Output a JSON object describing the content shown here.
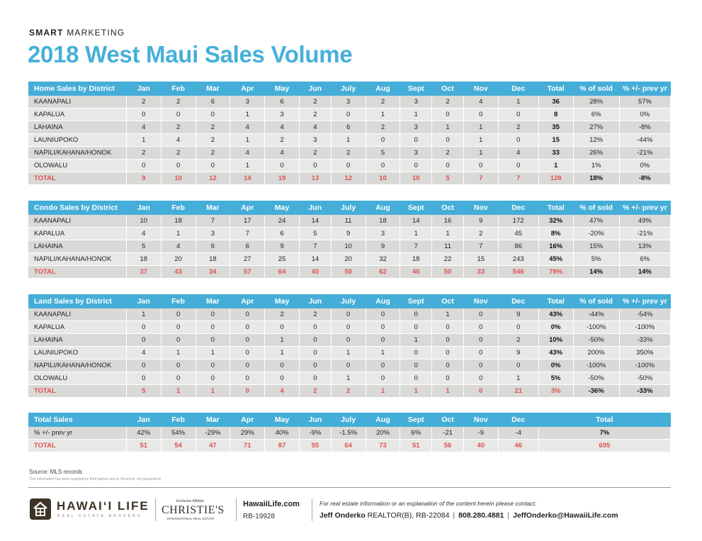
{
  "header": {
    "eyebrow_bold": "SMART",
    "eyebrow_rest": " MARKETING",
    "title": "2018 West Maui Sales Volume"
  },
  "colors": {
    "accent": "#45aed8",
    "total_red": "#e0524f",
    "row_dark": "#d9d9d7",
    "row_light": "#e8e8e6",
    "brand_brown": "#3d3326"
  },
  "home": {
    "columns": [
      "Home Sales by District",
      "Jan",
      "Feb",
      "Mar",
      "Apr",
      "May",
      "Jun",
      "July",
      "Aug",
      "Sept",
      "Oct",
      "Nov",
      "Dec",
      "Total",
      "% of sold",
      "% +/- prev yr"
    ],
    "rows": [
      [
        "KAANAPALI",
        "2",
        "2",
        "6",
        "3",
        "6",
        "2",
        "3",
        "2",
        "3",
        "2",
        "4",
        "1",
        "36",
        "28%",
        "57%"
      ],
      [
        "KAPALUA",
        "0",
        "0",
        "0",
        "1",
        "3",
        "2",
        "0",
        "1",
        "1",
        "0",
        "0",
        "0",
        "8",
        "6%",
        "0%"
      ],
      [
        "LAHAINA",
        "4",
        "2",
        "2",
        "4",
        "4",
        "4",
        "6",
        "2",
        "3",
        "1",
        "1",
        "2",
        "35",
        "27%",
        "-8%"
      ],
      [
        "LAUNIUPOKO",
        "1",
        "4",
        "2",
        "1",
        "2",
        "3",
        "1",
        "0",
        "0",
        "0",
        "1",
        "0",
        "15",
        "12%",
        "-44%"
      ],
      [
        "NAPILI/KAHANA/HONOK",
        "2",
        "2",
        "2",
        "4",
        "4",
        "2",
        "2",
        "5",
        "3",
        "2",
        "1",
        "4",
        "33",
        "26%",
        "-21%"
      ],
      [
        "OLOWALU",
        "0",
        "0",
        "0",
        "1",
        "0",
        "0",
        "0",
        "0",
        "0",
        "0",
        "0",
        "0",
        "1",
        "1%",
        "0%"
      ]
    ],
    "total": [
      "TOTAL",
      "9",
      "10",
      "12",
      "14",
      "19",
      "13",
      "12",
      "10",
      "10",
      "5",
      "7",
      "7",
      "128",
      "18%",
      "-8%"
    ]
  },
  "condo": {
    "columns": [
      "Condo Sales by District",
      "Jan",
      "Feb",
      "Mar",
      "Apr",
      "May",
      "Jun",
      "July",
      "Aug",
      "Sept",
      "Oct",
      "Nov",
      "Dec",
      "Total",
      "% of sold",
      "% +/- prev yr"
    ],
    "rows": [
      [
        "KAANAPALI",
        "10",
        "18",
        "7",
        "17",
        "24",
        "14",
        "11",
        "18",
        "14",
        "16",
        "9",
        "172",
        "32%",
        "47%",
        "49%"
      ],
      [
        "KAPALUA",
        "4",
        "1",
        "3",
        "7",
        "6",
        "5",
        "9",
        "3",
        "1",
        "1",
        "2",
        "45",
        "8%",
        "-20%",
        "-21%"
      ],
      [
        "LAHAINA",
        "5",
        "4",
        "6",
        "6",
        "9",
        "7",
        "10",
        "9",
        "7",
        "11",
        "7",
        "86",
        "16%",
        "15%",
        "13%"
      ],
      [
        "NAPILI/KAHANA/HONOK",
        "18",
        "20",
        "18",
        "27",
        "25",
        "14",
        "20",
        "32",
        "18",
        "22",
        "15",
        "243",
        "45%",
        "5%",
        "6%"
      ]
    ],
    "total": [
      "TOTAL",
      "37",
      "43",
      "34",
      "57",
      "64",
      "40",
      "50",
      "62",
      "40",
      "50",
      "33",
      "546",
      "79%",
      "14%",
      "14%"
    ]
  },
  "land": {
    "columns": [
      "Land Sales by District",
      "Jan",
      "Feb",
      "Mar",
      "Apr",
      "May",
      "Jun",
      "July",
      "Aug",
      "Sept",
      "Oct",
      "Nov",
      "Dec",
      "Total",
      "% of sold",
      "% +/- prev yr"
    ],
    "rows": [
      [
        "KAANAPALI",
        "1",
        "0",
        "0",
        "0",
        "2",
        "2",
        "0",
        "0",
        "0",
        "1",
        "0",
        "9",
        "43%",
        "-44%",
        "-54%"
      ],
      [
        "KAPALUA",
        "0",
        "0",
        "0",
        "0",
        "0",
        "0",
        "0",
        "0",
        "0",
        "0",
        "0",
        "0",
        "0%",
        "-100%",
        "-100%"
      ],
      [
        "LAHAINA",
        "0",
        "0",
        "0",
        "0",
        "1",
        "0",
        "0",
        "0",
        "1",
        "0",
        "0",
        "2",
        "10%",
        "-50%",
        "-33%"
      ],
      [
        "LAUNIUPOKO",
        "4",
        "1",
        "1",
        "0",
        "1",
        "0",
        "1",
        "1",
        "0",
        "0",
        "0",
        "9",
        "43%",
        "200%",
        "350%"
      ],
      [
        "NAPILI/KAHANA/HONOK",
        "0",
        "0",
        "0",
        "0",
        "0",
        "0",
        "0",
        "0",
        "0",
        "0",
        "0",
        "0",
        "0%",
        "-100%",
        "-100%"
      ],
      [
        "OLOWALU",
        "0",
        "0",
        "0",
        "0",
        "0",
        "0",
        "1",
        "0",
        "0",
        "0",
        "0",
        "1",
        "5%",
        "-50%",
        "-50%"
      ]
    ],
    "total": [
      "TOTAL",
      "5",
      "1",
      "1",
      "0",
      "4",
      "2",
      "2",
      "1",
      "1",
      "1",
      "0",
      "21",
      "3%",
      "-36%",
      "-33%"
    ]
  },
  "totals": {
    "columns": [
      "Total Sales",
      "Jan",
      "Feb",
      "Mar",
      "Apr",
      "May",
      "Jun",
      "July",
      "Aug",
      "Sept",
      "Oct",
      "Nov",
      "Dec",
      "Total"
    ],
    "change": [
      "% +/- prev yr",
      "42%",
      "54%",
      "-29%",
      "29%",
      "40%",
      "-9%",
      "-1.5%",
      "20%",
      "6%",
      "-21",
      "-9",
      "-4",
      "7%"
    ],
    "total": [
      "TOTAL",
      "51",
      "54",
      "47",
      "71",
      "87",
      "55",
      "64",
      "73",
      "51",
      "56",
      "40",
      "46",
      "695"
    ]
  },
  "footer": {
    "source": "Source: MLS records",
    "disclaimer": "This information has been supplied by third parties and is, therefore, not guaranteed.",
    "brand_name": "HAWAI‘I LIFE",
    "brand_sub": "REAL ESTATE BROKERS",
    "christies_affiliate": "Exclusive Affiliate",
    "christies_name": "CHRISTIE'S",
    "christies_sub": "INTERNATIONAL REAL ESTATE",
    "website": "HawaiiLife.com",
    "license": "RB-19928",
    "contact_intro": "For real estate information or an explanation of the content herein please contact:",
    "agent_name": "Jeff Onderko",
    "agent_title": " REALTOR(B), RB-22084",
    "phone": "808.280.4881",
    "email": "JeffOnderko@HawaiiLife.com",
    "separator": "|"
  }
}
